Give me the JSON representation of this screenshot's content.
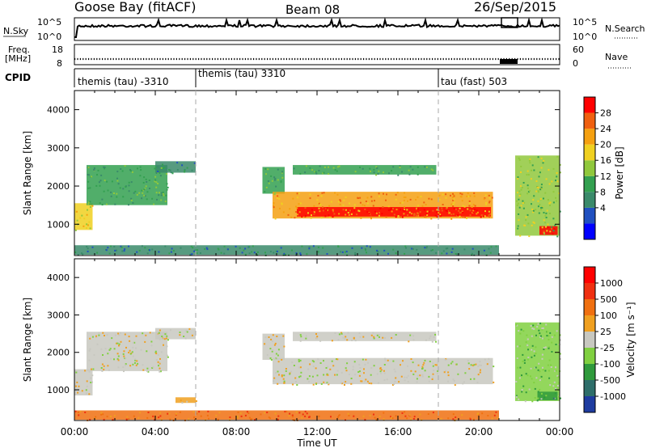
{
  "header": {
    "station": "Goose Bay (fitACF)",
    "beam": "Beam 08",
    "date": "26/Sep/2015"
  },
  "noise_panel": {
    "left_label": "N.Sky",
    "left_ticks": [
      "10^5",
      "10^0"
    ],
    "right_ticks": [
      "10^5",
      "10^0"
    ],
    "right_label": "N.Search"
  },
  "freq_panel": {
    "left_label_line1": "Freq.",
    "left_label_line2": "[MHz]",
    "left_ticks": [
      "18",
      "8"
    ],
    "right_ticks": [
      "60",
      "0"
    ],
    "right_label": "Nave"
  },
  "cpid_panel": {
    "label": "CPID",
    "segments": [
      {
        "label": "themis (tau) -3310",
        "start_hour": 0
      },
      {
        "label": "themis (tau) 3310",
        "start_hour": 6
      },
      {
        "label": "tau (fast) 503",
        "start_hour": 18
      }
    ]
  },
  "power_colorbar": {
    "label": "Power [dB]",
    "ticks": [
      "28",
      "24",
      "20",
      "16",
      "12",
      "8",
      "4"
    ],
    "colors": [
      "#0000ff",
      "#2050c0",
      "#3a8a6a",
      "#33a050",
      "#90c83c",
      "#f0d020",
      "#f5a010",
      "#f06010",
      "#ff0000"
    ]
  },
  "velocity_colorbar": {
    "label": "Velocity [m s⁻¹]",
    "ticks": [
      "1000",
      "500",
      "100",
      "25",
      "-25",
      "-100",
      "-500",
      "-1000"
    ],
    "colors": [
      "#1e3ca0",
      "#2e6e6a",
      "#2f9a3c",
      "#80d040",
      "#c8c8c0",
      "#f0a020",
      "#f07010",
      "#f03010",
      "#ff0000"
    ]
  },
  "xaxis": {
    "label": "Time UT",
    "ticks": [
      "00:00",
      "04:00",
      "08:00",
      "12:00",
      "16:00",
      "20:00",
      "00:00"
    ]
  },
  "chart_data": [
    {
      "type": "heatmap",
      "panel": "power",
      "ylabel": "Slant Range [km]",
      "xlabel": "",
      "xlim_hours": [
        0,
        24
      ],
      "ylim": [
        180,
        4500
      ],
      "yticks": [
        1000,
        2000,
        3000,
        4000
      ],
      "bands": [
        {
          "t_start": 0.0,
          "t_end": 0.9,
          "r_low": 850,
          "r_high": 1550,
          "level": 5
        },
        {
          "t_start": 0.6,
          "t_end": 4.6,
          "r_low": 1500,
          "r_high": 2550,
          "level": 3
        },
        {
          "t_start": 4.0,
          "t_end": 6.0,
          "r_low": 2350,
          "r_high": 2650,
          "level": 2
        },
        {
          "t_start": 9.3,
          "t_end": 10.4,
          "r_low": 1800,
          "r_high": 2500,
          "level": 3
        },
        {
          "t_start": 9.8,
          "t_end": 20.7,
          "r_low": 1150,
          "r_high": 1850,
          "level": 6
        },
        {
          "t_start": 11.0,
          "t_end": 20.6,
          "r_low": 1200,
          "r_high": 1450,
          "level": 8
        },
        {
          "t_start": 10.8,
          "t_end": 17.9,
          "r_low": 2300,
          "r_high": 2550,
          "level": 3
        },
        {
          "t_start": 21.8,
          "t_end": 24.0,
          "r_low": 700,
          "r_high": 2800,
          "level": 4
        },
        {
          "t_start": 23.0,
          "t_end": 23.9,
          "r_low": 720,
          "r_high": 950,
          "level": 8
        },
        {
          "t_start": 0.0,
          "t_end": 21.0,
          "r_low": 200,
          "r_high": 450,
          "level": 2
        }
      ]
    },
    {
      "type": "heatmap",
      "panel": "velocity",
      "ylabel": "Slant Range [km]",
      "xlabel": "Time UT",
      "xlim_hours": [
        0,
        24
      ],
      "ylim": [
        180,
        4500
      ],
      "yticks": [
        1000,
        2000,
        3000,
        4000
      ],
      "bands": [
        {
          "t_start": 0.0,
          "t_end": 0.9,
          "r_low": 850,
          "r_high": 1550,
          "level": 4
        },
        {
          "t_start": 0.6,
          "t_end": 4.6,
          "r_low": 1500,
          "r_high": 2550,
          "level": 4
        },
        {
          "t_start": 4.0,
          "t_end": 6.0,
          "r_low": 2350,
          "r_high": 2650,
          "level": 4
        },
        {
          "t_start": 9.3,
          "t_end": 10.4,
          "r_low": 1800,
          "r_high": 2500,
          "level": 4
        },
        {
          "t_start": 9.8,
          "t_end": 20.7,
          "r_low": 1150,
          "r_high": 1850,
          "level": 4
        },
        {
          "t_start": 10.8,
          "t_end": 17.9,
          "r_low": 2300,
          "r_high": 2550,
          "level": 4
        },
        {
          "t_start": 21.8,
          "t_end": 24.0,
          "r_low": 700,
          "r_high": 2800,
          "level": 3
        },
        {
          "t_start": 22.9,
          "t_end": 23.9,
          "r_low": 720,
          "r_high": 950,
          "level": 2
        },
        {
          "t_start": 5.0,
          "t_end": 6.0,
          "r_low": 650,
          "r_high": 800,
          "level": 5
        },
        {
          "t_start": 0.0,
          "t_end": 21.0,
          "r_low": 200,
          "r_high": 450,
          "level": 6
        }
      ]
    }
  ]
}
